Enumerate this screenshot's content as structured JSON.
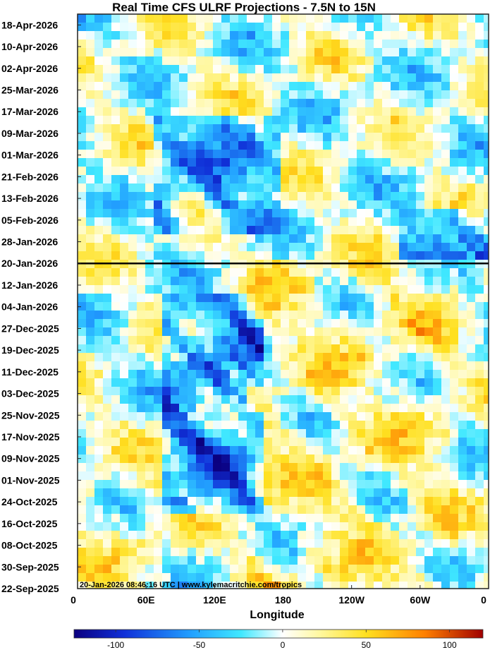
{
  "chart_data": {
    "type": "heatmap",
    "title": "Real Time CFS ULRF Projections - 7.5N to 15N",
    "xlabel": "Longitude",
    "ylabel": "",
    "x_ticks": [
      "0",
      "60E",
      "120E",
      "180",
      "120W",
      "60W",
      "0"
    ],
    "x_tick_values": [
      0,
      60,
      120,
      180,
      240,
      300,
      360
    ],
    "y_ticks": [
      "18-Apr-2026",
      "10-Apr-2026",
      "02-Apr-2026",
      "25-Mar-2026",
      "17-Mar-2026",
      "09-Mar-2026",
      "01-Mar-2026",
      "21-Feb-2026",
      "13-Feb-2026",
      "05-Feb-2026",
      "28-Jan-2026",
      "20-Jan-2026",
      "12-Jan-2026",
      "04-Jan-2026",
      "27-Dec-2025",
      "19-Dec-2025",
      "11-Dec-2025",
      "03-Dec-2025",
      "25-Nov-2025",
      "17-Nov-2025",
      "09-Nov-2025",
      "01-Nov-2025",
      "24-Oct-2025",
      "16-Oct-2025",
      "08-Oct-2025",
      "30-Sep-2025",
      "22-Sep-2025"
    ],
    "xlim": [
      0,
      360
    ],
    "ylim": [
      "22-Sep-2025",
      "22-Apr-2026"
    ],
    "colorbar": {
      "ticks": [
        "-100",
        "-50",
        "0",
        "50",
        "100"
      ],
      "tick_values": [
        -100,
        -50,
        0,
        50,
        100
      ],
      "range": [
        -125,
        120
      ],
      "colors": {
        "min": "#0b0080",
        "strong_negative": "#1030d8",
        "negative": "#22a0ff",
        "weak_negative": "#40e8ff",
        "zero": "#ffffff",
        "weak_positive": "#fff8a0",
        "positive": "#ffe020",
        "strong_positive": "#ff8000",
        "max": "#a00000"
      }
    },
    "reference_line": {
      "date": "20-Jan-2026",
      "color": "#000000"
    },
    "features": [
      {
        "kind": "negative-band",
        "lon": [
          65,
          180
        ],
        "date": [
          "01-Feb-2026",
          "15-Mar-2026"
        ],
        "value": -90
      },
      {
        "kind": "negative-band",
        "lon": [
          75,
          160
        ],
        "date": [
          "20-Oct-2025",
          "10-Jan-2026"
        ],
        "value": -100
      },
      {
        "kind": "negative-band",
        "lon": [
          280,
          360
        ],
        "date": [
          "20-Jan-2026",
          "10-Feb-2026"
        ],
        "value": -85
      },
      {
        "kind": "positive-band",
        "lon": [
          150,
          330
        ],
        "date": [
          "22-Sep-2025",
          "20-Jan-2026"
        ],
        "value": 35
      },
      {
        "kind": "positive-band",
        "lon": [
          0,
          80
        ],
        "date": [
          "22-Sep-2025",
          "01-Nov-2025"
        ],
        "value": 30
      }
    ],
    "footer": "20-Jan-2026 08:46:16 UTC | www.kylemacritchie.com/tropics"
  }
}
